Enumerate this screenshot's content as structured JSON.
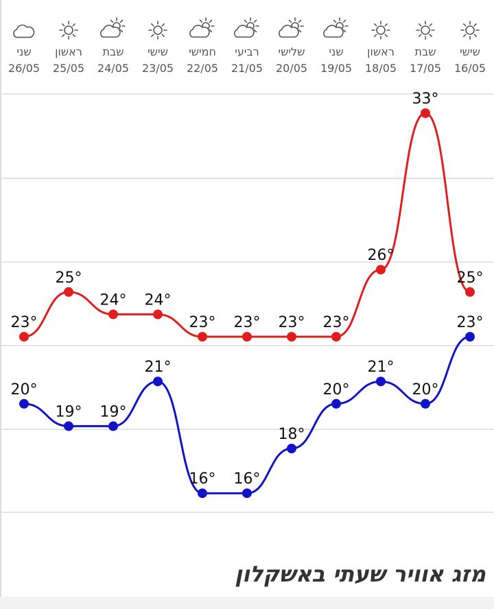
{
  "page": {
    "title": "מזג אוויר שעתי באשקלון"
  },
  "colors": {
    "high": "#e01e1e",
    "low": "#1212c8",
    "grid": "#e3e3e3",
    "icon": "#555555"
  },
  "chart_data": {
    "type": "line",
    "x": [
      "16/05",
      "17/05",
      "18/05",
      "19/05",
      "20/05",
      "21/05",
      "22/05",
      "23/05",
      "24/05",
      "25/05",
      "26/05"
    ],
    "day_names": [
      "שישי",
      "שבת",
      "ראשון",
      "שני",
      "שלישי",
      "רביעי",
      "חמישי",
      "שישי",
      "שבת",
      "ראשון",
      "שני"
    ],
    "weather_icons": [
      "sun-icon",
      "sun-icon",
      "sun-icon",
      "partly-cloudy-icon",
      "partly-cloudy-icon",
      "partly-cloudy-icon",
      "partly-cloudy-icon",
      "sun-icon",
      "partly-cloudy-icon",
      "sun-icon",
      "cloud-icon"
    ],
    "series": [
      {
        "values": [
          25,
          33,
          26,
          23,
          23,
          23,
          23,
          24,
          24,
          25,
          23
        ]
      },
      {
        "values": [
          23,
          20,
          21,
          20,
          18,
          16,
          16,
          21,
          19,
          19,
          20
        ]
      }
    ],
    "data_labels": {
      "high": [
        "25°",
        "33°",
        "26°",
        "23°",
        "23°",
        "23°",
        "23°",
        "24°",
        "24°",
        "25°",
        "23°"
      ],
      "low": [
        "23°",
        "20°",
        "21°",
        "20°",
        "18°",
        "16°",
        "16°",
        "21°",
        "19°",
        "19°",
        "20°"
      ]
    },
    "x_direction": "right-to-left",
    "grid": true,
    "ylim": [
      12,
      36
    ]
  }
}
